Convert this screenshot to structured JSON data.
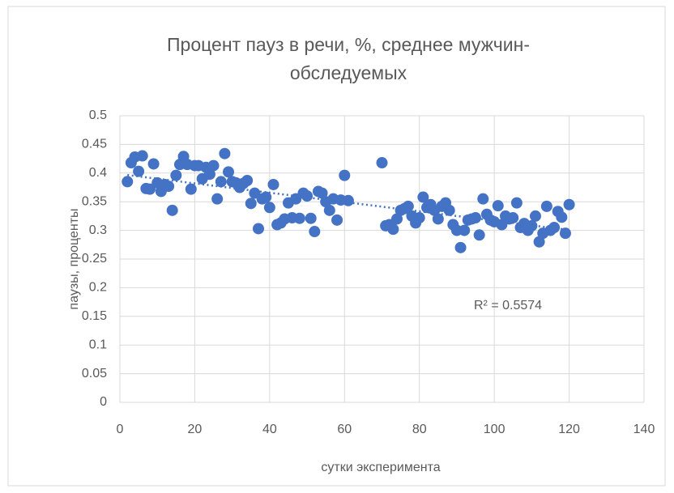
{
  "chart_data": {
    "type": "scatter",
    "title": "Процент пауз в речи, %, среднее мужчин-обследуемых",
    "xlabel": "сутки эксперимента",
    "ylabel": "паузы, проценты",
    "annotation": "R² = 0.5574",
    "trendline": "linear",
    "color": "#4472c4",
    "grid": true,
    "xlim": [
      0,
      140
    ],
    "xticks": [
      0,
      20,
      40,
      60,
      80,
      100,
      120,
      140
    ],
    "ylim": [
      0,
      0.5
    ],
    "yticks": [
      0,
      0.05,
      0.1,
      0.15,
      0.2,
      0.25,
      0.3,
      0.35,
      0.4,
      0.45,
      0.5
    ],
    "x": [
      2,
      3,
      4,
      5,
      6,
      7,
      8,
      9,
      10,
      11,
      12,
      13,
      14,
      15,
      16,
      17,
      18,
      19,
      20,
      21,
      22,
      23,
      24,
      25,
      26,
      27,
      28,
      29,
      30,
      31,
      32,
      33,
      34,
      35,
      36,
      37,
      38,
      39,
      40,
      41,
      42,
      43,
      44,
      45,
      46,
      47,
      48,
      49,
      50,
      51,
      52,
      53,
      54,
      55,
      56,
      57,
      58,
      59,
      60,
      61,
      70,
      71,
      72,
      73,
      74,
      75,
      76,
      77,
      78,
      79,
      80,
      81,
      82,
      83,
      84,
      85,
      86,
      87,
      88,
      89,
      90,
      91,
      92,
      93,
      94,
      95,
      96,
      97,
      98,
      99,
      100,
      101,
      102,
      103,
      104,
      105,
      106,
      107,
      108,
      109,
      110,
      111,
      112,
      113,
      114,
      115,
      116,
      117,
      118,
      119,
      120
    ],
    "values": [
      0.385,
      0.418,
      0.428,
      0.403,
      0.43,
      0.373,
      0.372,
      0.416,
      0.383,
      0.368,
      0.38,
      0.377,
      0.335,
      0.396,
      0.415,
      0.429,
      0.415,
      0.372,
      0.413,
      0.413,
      0.39,
      0.41,
      0.398,
      0.413,
      0.355,
      0.385,
      0.434,
      0.402,
      0.385,
      0.383,
      0.375,
      0.382,
      0.387,
      0.347,
      0.365,
      0.303,
      0.355,
      0.358,
      0.34,
      0.38,
      0.31,
      0.313,
      0.32,
      0.348,
      0.322,
      0.355,
      0.321,
      0.365,
      0.36,
      0.321,
      0.298,
      0.368,
      0.365,
      0.35,
      0.335,
      0.355,
      0.318,
      0.353,
      0.396,
      0.352,
      0.418,
      0.308,
      0.31,
      0.302,
      0.32,
      0.335,
      0.338,
      0.342,
      0.325,
      0.313,
      0.322,
      0.358,
      0.34,
      0.345,
      0.335,
      0.32,
      0.342,
      0.348,
      0.335,
      0.31,
      0.3,
      0.27,
      0.3,
      0.318,
      0.32,
      0.322,
      0.292,
      0.355,
      0.328,
      0.318,
      0.315,
      0.343,
      0.31,
      0.325,
      0.32,
      0.322,
      0.348,
      0.305,
      0.312,
      0.3,
      0.308,
      0.325,
      0.28,
      0.295,
      0.342,
      0.3,
      0.305,
      0.333,
      0.323,
      0.295,
      0.345
    ]
  }
}
